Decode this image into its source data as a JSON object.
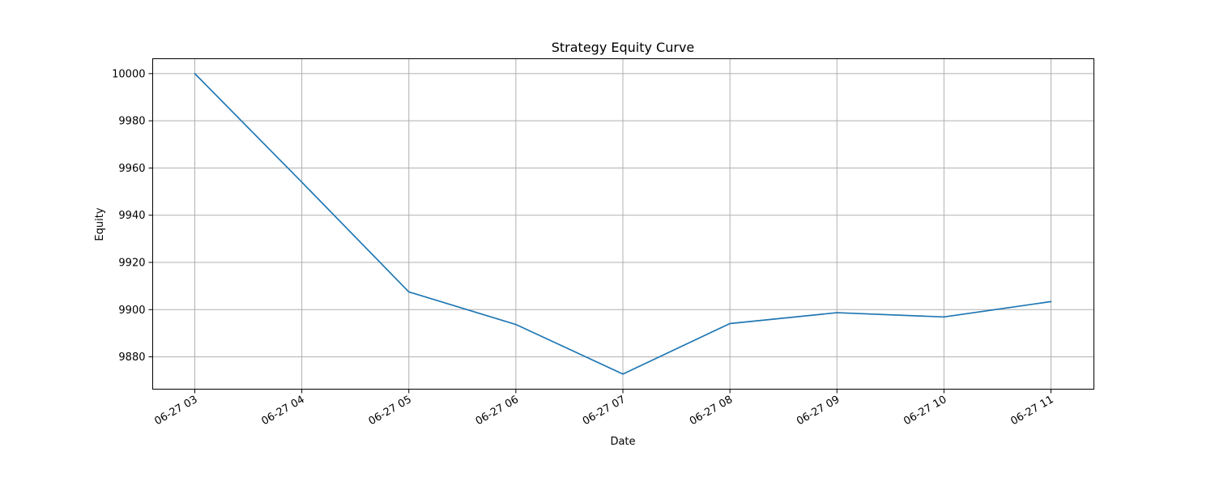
{
  "chart_data": {
    "type": "line",
    "title": "Strategy Equity Curve",
    "xlabel": "Date",
    "ylabel": "Equity",
    "x": [
      "06-27 03",
      "06-27 04",
      "06-27 05",
      "06-27 06",
      "06-27 07",
      "06-27 08",
      "06-27 09",
      "06-27 10",
      "06-27 11"
    ],
    "series": [
      {
        "values": [
          10000,
          9954,
          9907.5,
          9893.7,
          9872.7,
          9894.1,
          9898.7,
          9896.9,
          9903.4
        ],
        "color": "#1f77b4"
      }
    ],
    "ylim": [
      9866.3,
      10006.3
    ],
    "yticks": [
      9880,
      9900,
      9920,
      9940,
      9960,
      9980,
      10000
    ],
    "grid": true,
    "legend": "none"
  }
}
